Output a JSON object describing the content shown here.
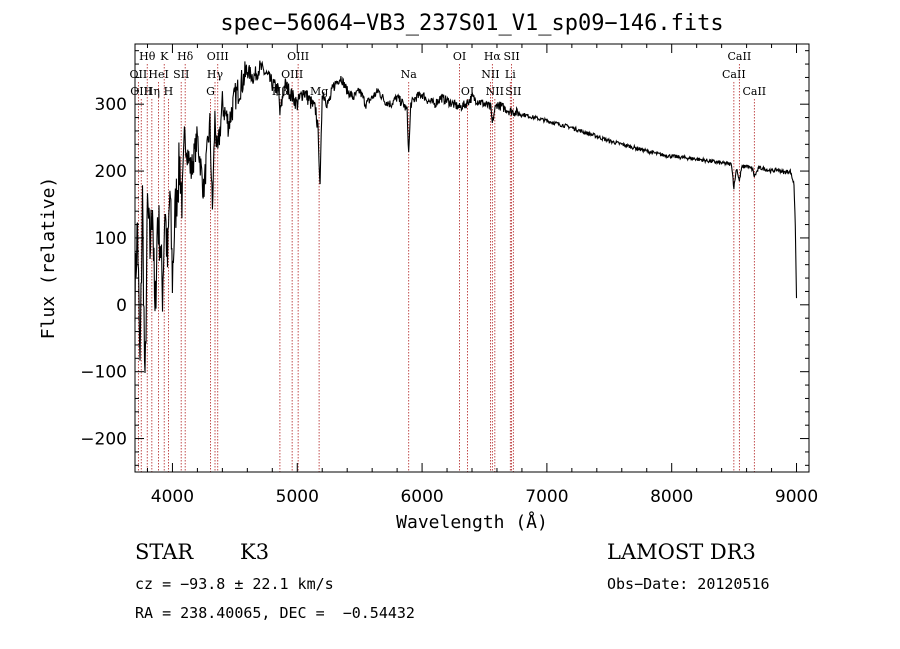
{
  "chart_data": {
    "type": "line",
    "title": "spec−56064−VB3_237S01_V1_sp09−146.fits",
    "xlabel": "Wavelength (Å)",
    "ylabel": "Flux (relative)",
    "xlim": [
      3700,
      9100
    ],
    "ylim": [
      -250,
      390
    ],
    "xticks": [
      4000,
      5000,
      6000,
      7000,
      8000,
      9000
    ],
    "xtick_labels": [
      "4000",
      "5000",
      "6000",
      "7000",
      "8000",
      "9000"
    ],
    "yticks": [
      -200,
      -100,
      0,
      100,
      200,
      300
    ],
    "ytick_labels": [
      "−200",
      "−100",
      "0",
      "100",
      "200",
      "300"
    ],
    "series": [
      {
        "name": "flux",
        "x": [
          3700,
          3720,
          3740,
          3760,
          3780,
          3800,
          3820,
          3840,
          3860,
          3880,
          3900,
          3920,
          3940,
          3960,
          3980,
          4000,
          4020,
          4040,
          4060,
          4080,
          4100,
          4150,
          4200,
          4250,
          4300,
          4320,
          4340,
          4360,
          4400,
          4450,
          4500,
          4550,
          4600,
          4650,
          4700,
          4750,
          4800,
          4850,
          4861,
          4900,
          4950,
          5000,
          5050,
          5100,
          5150,
          5170,
          5183,
          5200,
          5250,
          5300,
          5350,
          5400,
          5450,
          5500,
          5550,
          5600,
          5650,
          5700,
          5750,
          5800,
          5850,
          5880,
          5893,
          5910,
          5950,
          6000,
          6050,
          6100,
          6150,
          6200,
          6250,
          6300,
          6350,
          6400,
          6450,
          6500,
          6550,
          6563,
          6580,
          6600,
          6650,
          6700,
          6750,
          6800,
          6900,
          7000,
          7100,
          7200,
          7300,
          7400,
          7500,
          7600,
          7700,
          7800,
          7900,
          8000,
          8100,
          8200,
          8300,
          8400,
          8480,
          8498,
          8520,
          8542,
          8560,
          8600,
          8650,
          8662,
          8700,
          8750,
          8800,
          8850,
          8900,
          8950,
          8980,
          8990,
          9000
        ],
        "values": [
          20,
          120,
          -100,
          160,
          -140,
          150,
          80,
          160,
          -30,
          130,
          100,
          20,
          150,
          60,
          170,
          40,
          130,
          180,
          210,
          150,
          250,
          200,
          250,
          170,
          270,
          140,
          280,
          220,
          300,
          270,
          310,
          330,
          350,
          340,
          355,
          345,
          330,
          320,
          285,
          330,
          315,
          300,
          320,
          305,
          290,
          250,
          170,
          320,
          300,
          330,
          340,
          320,
          310,
          320,
          300,
          310,
          320,
          305,
          300,
          310,
          300,
          290,
          225,
          300,
          310,
          315,
          305,
          300,
          310,
          305,
          300,
          295,
          300,
          310,
          305,
          300,
          295,
          270,
          290,
          300,
          295,
          290,
          288,
          285,
          280,
          275,
          270,
          265,
          258,
          252,
          245,
          240,
          235,
          230,
          225,
          222,
          220,
          218,
          215,
          212,
          210,
          175,
          205,
          185,
          205,
          208,
          202,
          192,
          205,
          203,
          200,
          202,
          198,
          200,
          180,
          120,
          10
        ]
      }
    ],
    "line_labels": [
      {
        "name": "Hθ",
        "wavelength": 3798,
        "row": 0
      },
      {
        "name": "OII",
        "wavelength": 3727,
        "row": 1
      },
      {
        "name": "OIII",
        "wavelength": 3750,
        "row": 2
      },
      {
        "name": "Hη",
        "wavelength": 3835,
        "row": 2
      },
      {
        "name": "HeI",
        "wavelength": 3889,
        "row": 1
      },
      {
        "name": "K",
        "wavelength": 3934,
        "row": 0
      },
      {
        "name": "H",
        "wavelength": 3968,
        "row": 2
      },
      {
        "name": "SII",
        "wavelength": 4070,
        "row": 1
      },
      {
        "name": "Hδ",
        "wavelength": 4102,
        "row": 0
      },
      {
        "name": "OIII",
        "wavelength": 4363,
        "row": 0
      },
      {
        "name": "Hγ",
        "wavelength": 4341,
        "row": 1
      },
      {
        "name": "G",
        "wavelength": 4305,
        "row": 2
      },
      {
        "name": "Hβ",
        "wavelength": 4861,
        "row": 2
      },
      {
        "name": "OIII",
        "wavelength": 4959,
        "row": 1
      },
      {
        "name": "OIII",
        "wavelength": 5007,
        "row": 0
      },
      {
        "name": "Mg",
        "wavelength": 5175,
        "row": 2
      },
      {
        "name": "Na",
        "wavelength": 5893,
        "row": 1
      },
      {
        "name": "OI",
        "wavelength": 6300,
        "row": 0
      },
      {
        "name": "OI",
        "wavelength": 6364,
        "row": 2
      },
      {
        "name": "Hα",
        "wavelength": 6563,
        "row": 0
      },
      {
        "name": "NII",
        "wavelength": 6548,
        "row": 1
      },
      {
        "name": "NII",
        "wavelength": 6583,
        "row": 2
      },
      {
        "name": "SII",
        "wavelength": 6717,
        "row": 0
      },
      {
        "name": "Li",
        "wavelength": 6707,
        "row": 1
      },
      {
        "name": "SII",
        "wavelength": 6731,
        "row": 2
      },
      {
        "name": "CaII",
        "wavelength": 8542,
        "row": 0
      },
      {
        "name": "CaII",
        "wavelength": 8498,
        "row": 1
      },
      {
        "name": "CaII",
        "wavelength": 8662,
        "row": 2
      }
    ],
    "grid": false,
    "line_color": "#000000",
    "marker_color": "#b22222"
  },
  "info": {
    "class_label": "STAR",
    "subclass": "K3",
    "survey": "LAMOST DR3",
    "cz": "cz = −93.8 ± 22.1 km/s",
    "obs_date": "Obs−Date: 20120516",
    "coords": "RA = 238.40065, DEC =  −0.54432"
  }
}
